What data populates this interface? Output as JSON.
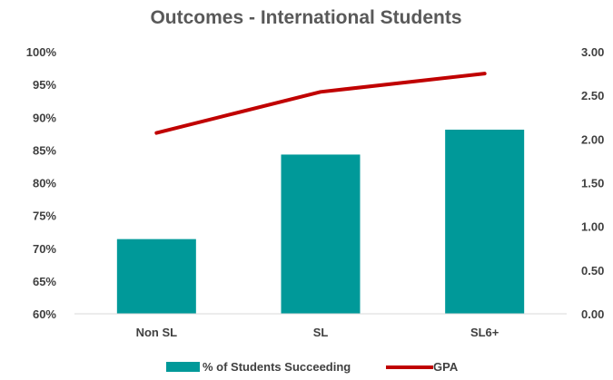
{
  "chart_data": {
    "type": "bar",
    "title": "Outcomes - International Students",
    "categories": [
      "Non SL",
      "SL",
      "SL6+"
    ],
    "series": [
      {
        "name": "% of Students Succeeding",
        "type": "bar",
        "axis": "left",
        "values": [
          71.4,
          84.3,
          88.1
        ],
        "color": "#009999"
      },
      {
        "name": "GPA",
        "type": "line",
        "axis": "right",
        "values": [
          2.07,
          2.54,
          2.75
        ],
        "color": "#c00000"
      }
    ],
    "y_left": {
      "min": 60,
      "max": 100,
      "step": 5,
      "tick_labels": [
        "60%",
        "65%",
        "70%",
        "75%",
        "80%",
        "85%",
        "90%",
        "95%",
        "100%"
      ]
    },
    "y_right": {
      "min": 0,
      "max": 3,
      "step": 0.5,
      "tick_labels": [
        "0.00",
        "0.50",
        "1.00",
        "1.50",
        "2.00",
        "2.50",
        "3.00"
      ]
    },
    "grid": false,
    "legend_position": "bottom"
  }
}
